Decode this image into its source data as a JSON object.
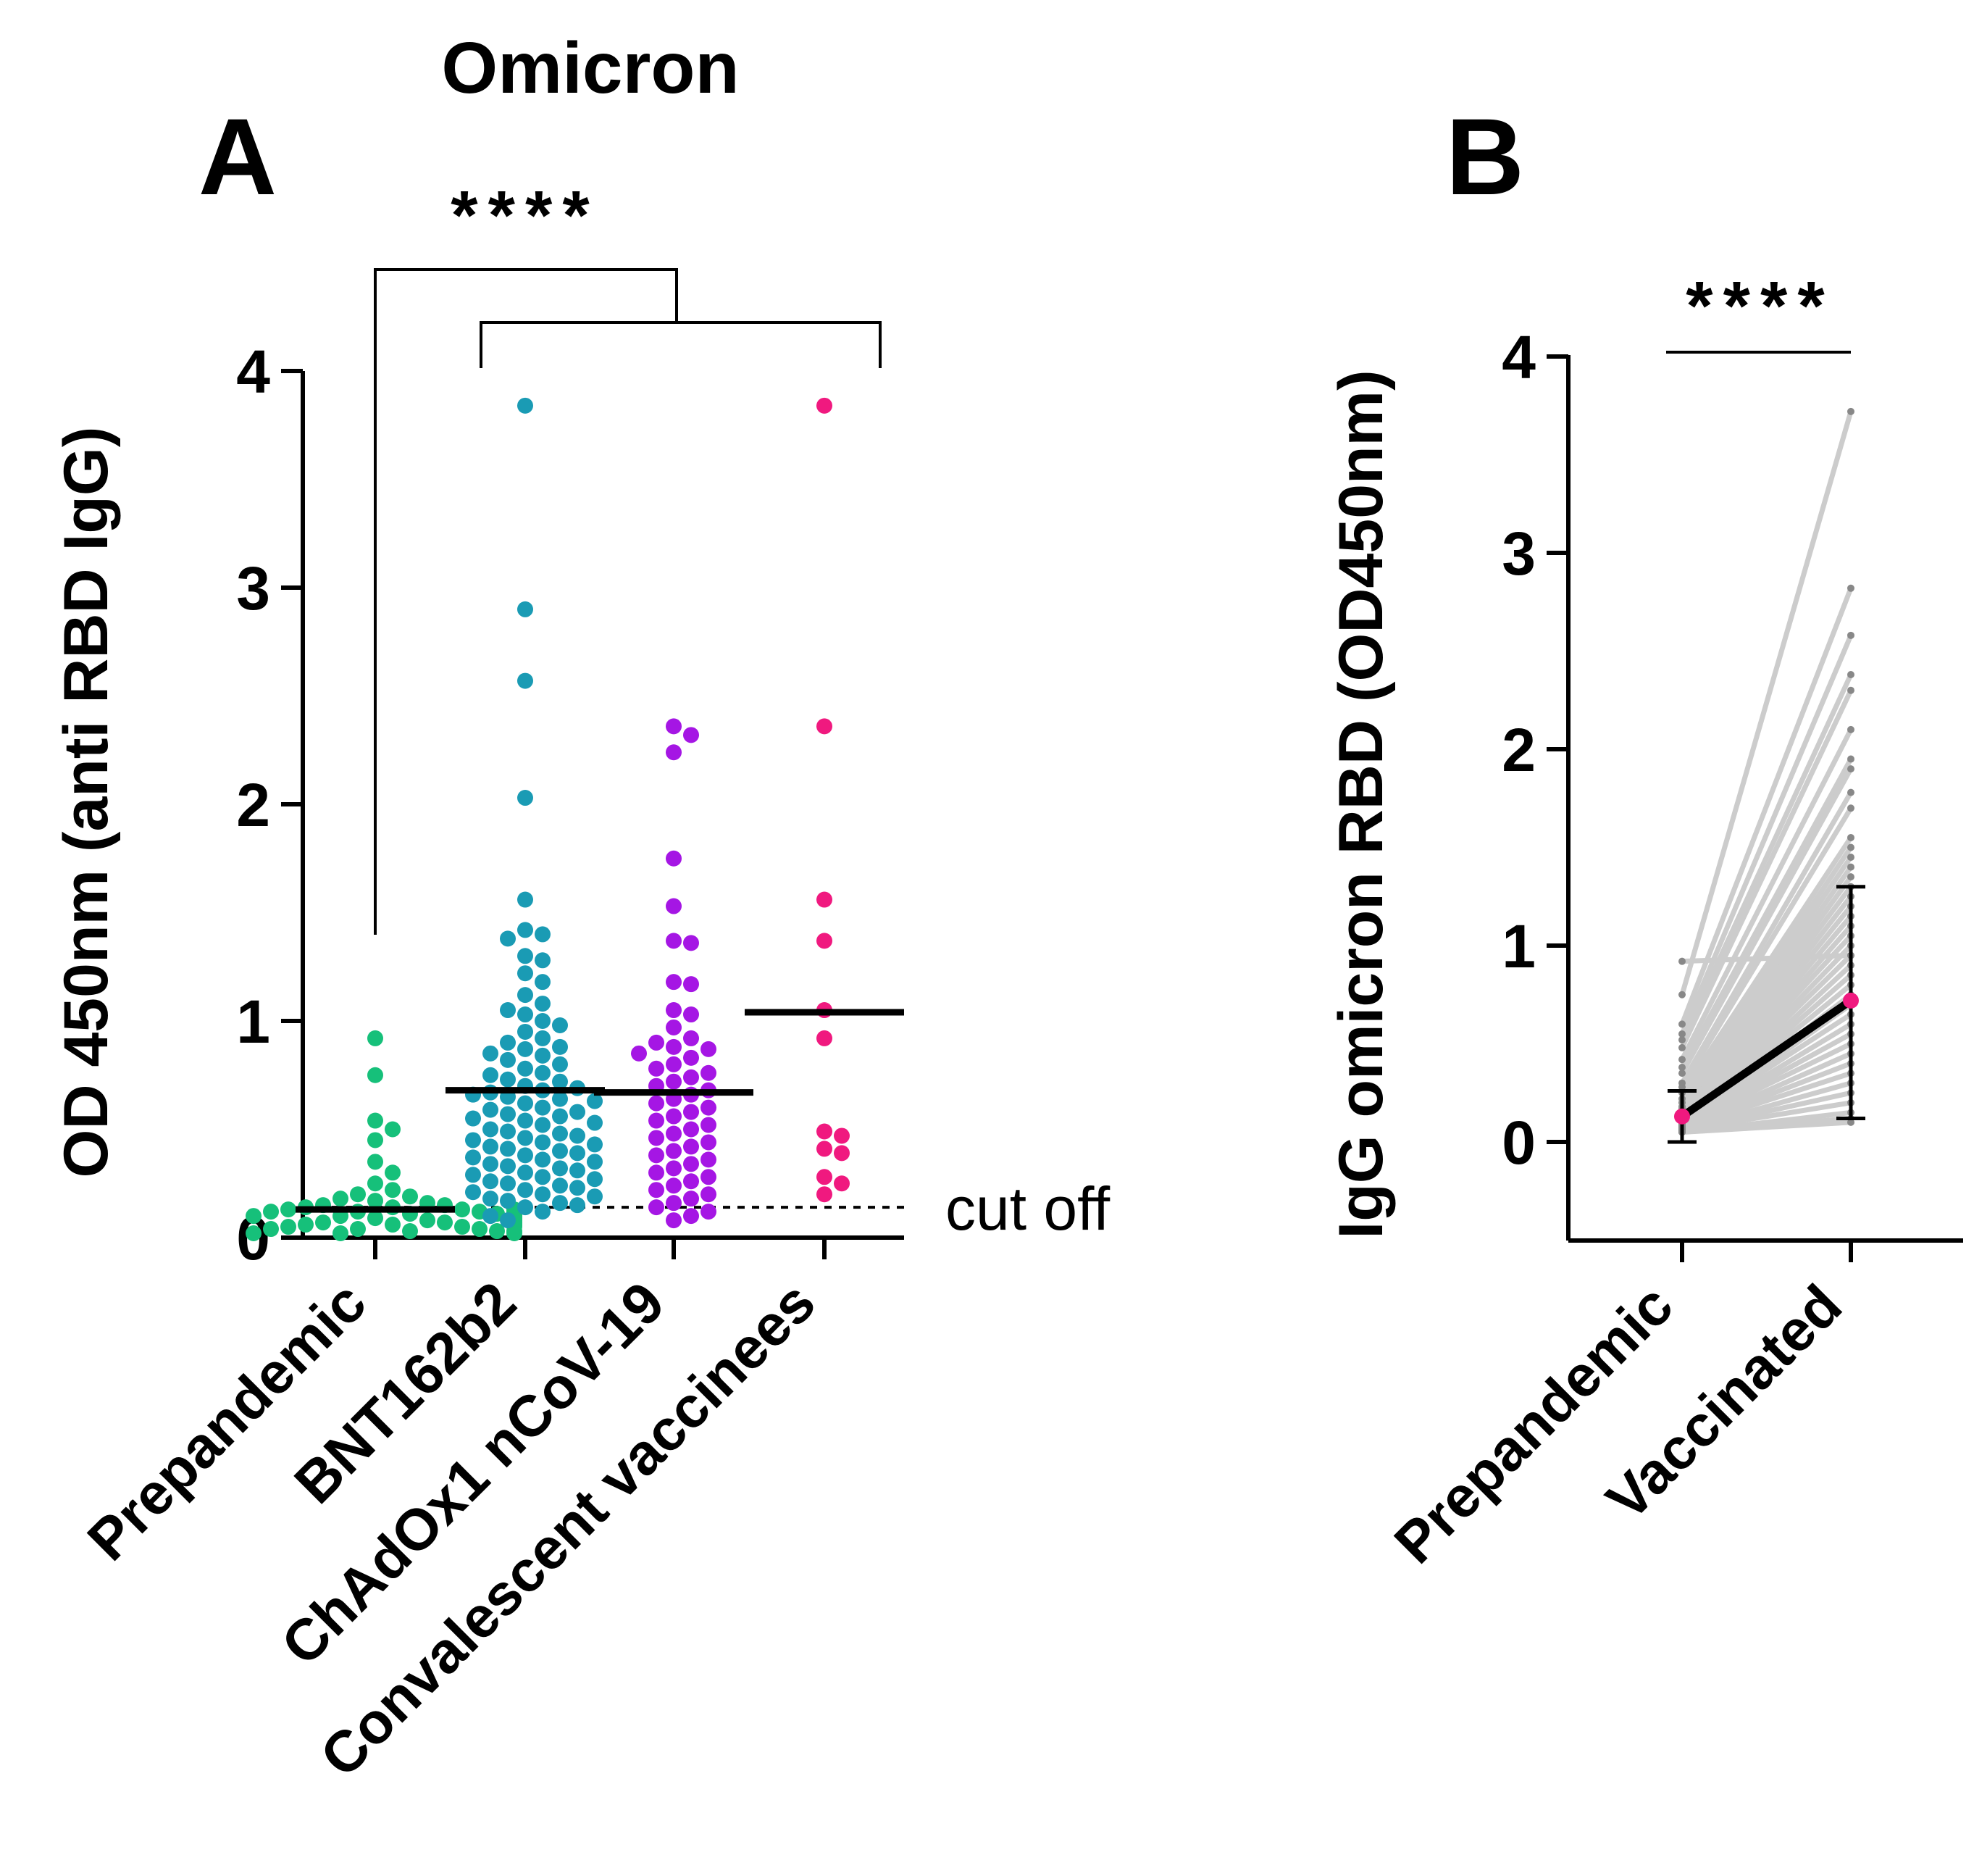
{
  "figure_title": "Omicron",
  "chart_data": [
    {
      "type": "scatter",
      "panel_label": "A",
      "title": "Omicron",
      "ylabel": "OD 450nm (anti RBD IgG)",
      "xlabel": "",
      "ylim": [
        0,
        4
      ],
      "yticks": [
        "0",
        "1",
        "2",
        "3",
        "4"
      ],
      "categories": [
        "Prepandemic",
        "BNT162b2",
        "ChAdOx1 nCoV-19",
        "Convalescent vaccinees"
      ],
      "colors": [
        "#16c07a",
        "#1a9bb4",
        "#a516e4",
        "#f0197f"
      ],
      "medians": [
        0.13,
        0.68,
        0.67,
        1.04
      ],
      "cutoff": 0.14,
      "cutoff_label": "cut off",
      "significance": "****",
      "series": [
        {
          "name": "Prepandemic",
          "values": [
            0.92,
            0.75,
            0.54,
            0.5,
            0.45,
            0.35,
            0.3,
            0.25,
            0.22,
            0.2,
            0.19,
            0.18,
            0.17,
            0.16,
            0.15,
            0.15,
            0.14,
            0.14,
            0.13,
            0.13,
            0.12,
            0.12,
            0.12,
            0.11,
            0.11,
            0.1,
            0.1,
            0.1,
            0.09,
            0.09,
            0.09,
            0.08,
            0.08,
            0.08,
            0.07,
            0.07,
            0.07,
            0.06,
            0.06,
            0.06,
            0.05,
            0.05,
            0.05,
            0.04,
            0.04,
            0.04,
            0.03,
            0.03,
            0.03,
            0.02,
            0.02,
            0.02,
            0.1,
            0.11,
            0.12,
            0.13,
            0.06,
            0.07,
            0.08,
            0.09
          ]
        },
        {
          "name": "BNT162b2",
          "values": [
            3.84,
            2.9,
            2.57,
            2.03,
            1.56,
            1.42,
            1.4,
            1.38,
            1.3,
            1.28,
            1.22,
            1.18,
            1.12,
            1.08,
            1.05,
            1.03,
            1.0,
            0.98,
            0.95,
            0.92,
            0.9,
            0.88,
            0.87,
            0.85,
            0.84,
            0.82,
            0.8,
            0.78,
            0.76,
            0.75,
            0.73,
            0.72,
            0.7,
            0.69,
            0.68,
            0.67,
            0.66,
            0.65,
            0.64,
            0.63,
            0.62,
            0.6,
            0.59,
            0.58,
            0.57,
            0.56,
            0.55,
            0.54,
            0.53,
            0.52,
            0.5,
            0.49,
            0.48,
            0.47,
            0.46,
            0.45,
            0.44,
            0.43,
            0.42,
            0.41,
            0.4,
            0.39,
            0.38,
            0.37,
            0.36,
            0.35,
            0.34,
            0.33,
            0.32,
            0.31,
            0.3,
            0.29,
            0.28,
            0.27,
            0.26,
            0.25,
            0.24,
            0.23,
            0.22,
            0.21,
            0.2,
            0.19,
            0.18,
            0.17,
            0.16,
            0.15,
            0.14,
            0.12,
            0.1,
            0.08
          ]
        },
        {
          "name": "ChAdOx1 nCoV-19",
          "values": [
            2.36,
            2.32,
            2.24,
            1.75,
            1.53,
            1.37,
            1.36,
            1.18,
            1.17,
            1.05,
            1.03,
            0.97,
            0.92,
            0.9,
            0.88,
            0.87,
            0.85,
            0.83,
            0.8,
            0.78,
            0.76,
            0.74,
            0.72,
            0.7,
            0.68,
            0.66,
            0.64,
            0.62,
            0.6,
            0.58,
            0.56,
            0.54,
            0.52,
            0.5,
            0.48,
            0.46,
            0.44,
            0.42,
            0.4,
            0.38,
            0.36,
            0.34,
            0.32,
            0.3,
            0.28,
            0.26,
            0.24,
            0.22,
            0.2,
            0.18,
            0.16,
            0.14,
            0.12,
            0.1,
            0.08
          ]
        },
        {
          "name": "Convalescent vaccinees",
          "values": [
            3.84,
            2.36,
            1.56,
            1.37,
            1.05,
            0.92,
            0.49,
            0.47,
            0.41,
            0.39,
            0.28,
            0.25,
            0.2
          ]
        }
      ]
    },
    {
      "type": "line",
      "panel_label": "B",
      "ylabel": "IgG omicron RBD (OD450nm)",
      "xlabel": "",
      "ylim": [
        -0.5,
        4
      ],
      "yticks": [
        "0",
        "1",
        "2",
        "3",
        "4"
      ],
      "categories": [
        "Prepandemic",
        "Vaccinated"
      ],
      "significance": "****",
      "mean_line": {
        "values": [
          0.13,
          0.72
        ],
        "color": "#000000"
      },
      "error_bars": [
        {
          "low": 0.0,
          "high": 0.26
        },
        {
          "low": 0.12,
          "high": 1.3
        }
      ],
      "mean_marker_color": "#f0197f",
      "pair_color": "#cccccc",
      "pairs": [
        [
          0.92,
          0.95
        ],
        [
          0.75,
          3.72
        ],
        [
          0.6,
          2.82
        ],
        [
          0.55,
          2.58
        ],
        [
          0.52,
          2.38
        ],
        [
          0.48,
          2.3
        ],
        [
          0.42,
          2.1
        ],
        [
          0.38,
          1.95
        ],
        [
          0.35,
          1.9
        ],
        [
          0.3,
          1.78
        ],
        [
          0.28,
          1.7
        ],
        [
          0.25,
          1.55
        ],
        [
          0.22,
          1.5
        ],
        [
          0.2,
          1.45
        ],
        [
          0.18,
          1.4
        ],
        [
          0.17,
          1.35
        ],
        [
          0.16,
          1.3
        ],
        [
          0.15,
          1.25
        ],
        [
          0.14,
          1.2
        ],
        [
          0.13,
          1.15
        ],
        [
          0.12,
          1.1
        ],
        [
          0.12,
          1.05
        ],
        [
          0.11,
          1.0
        ],
        [
          0.11,
          0.95
        ],
        [
          0.1,
          0.9
        ],
        [
          0.1,
          0.85
        ],
        [
          0.1,
          0.8
        ],
        [
          0.09,
          0.75
        ],
        [
          0.09,
          0.7
        ],
        [
          0.09,
          0.65
        ],
        [
          0.08,
          0.6
        ],
        [
          0.08,
          0.55
        ],
        [
          0.08,
          0.5
        ],
        [
          0.07,
          0.45
        ],
        [
          0.07,
          0.4
        ],
        [
          0.07,
          0.35
        ],
        [
          0.06,
          0.3
        ],
        [
          0.06,
          0.25
        ],
        [
          0.06,
          0.2
        ],
        [
          0.05,
          0.15
        ],
        [
          0.05,
          0.12
        ],
        [
          0.05,
          0.1
        ]
      ]
    }
  ]
}
